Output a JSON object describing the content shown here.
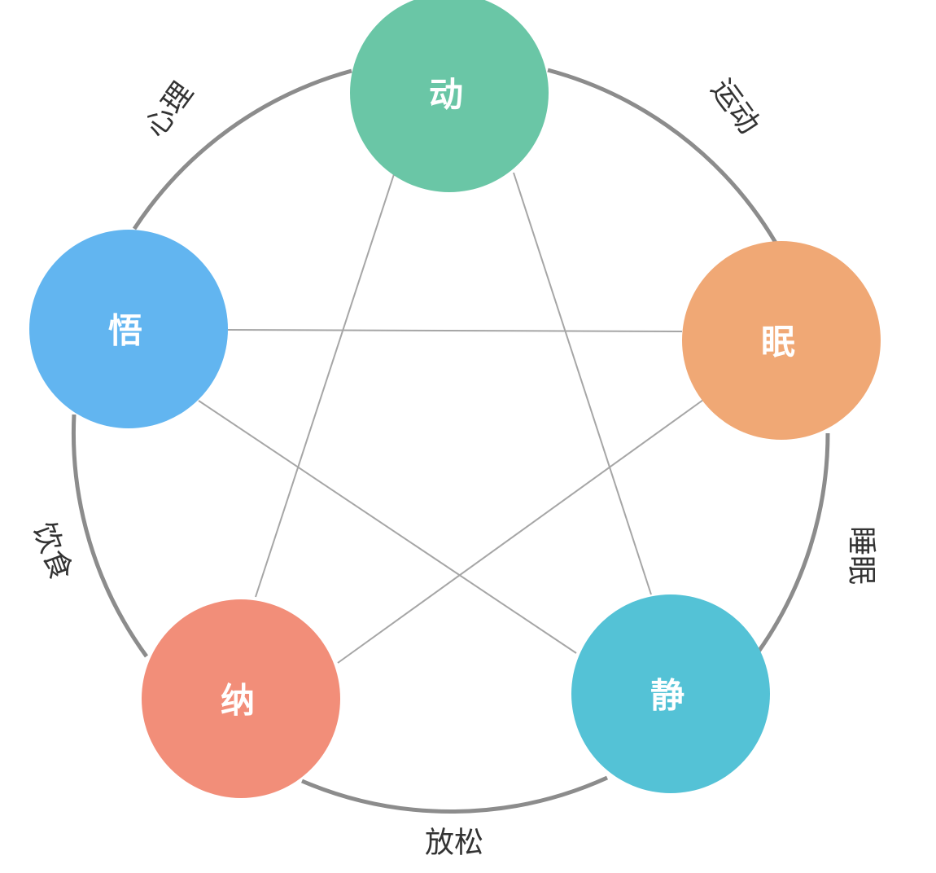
{
  "nodes": [
    {
      "id": "dong",
      "label": "动",
      "color": "#6AC6A6"
    },
    {
      "id": "mian",
      "label": "眠",
      "color": "#F0A875"
    },
    {
      "id": "jing",
      "label": "静",
      "color": "#54C2D6"
    },
    {
      "id": "na",
      "label": "纳",
      "color": "#F28E79"
    },
    {
      "id": "wu",
      "label": "悟",
      "color": "#62B5F0"
    }
  ],
  "arcs": [
    {
      "from": "dong",
      "to": "mian",
      "label": "运动"
    },
    {
      "from": "mian",
      "to": "jing",
      "label": "睡眠"
    },
    {
      "from": "jing",
      "to": "na",
      "label": "放松"
    },
    {
      "from": "na",
      "to": "wu",
      "label": "饮食"
    },
    {
      "from": "wu",
      "to": "dong",
      "label": "心理"
    }
  ],
  "star_links": [
    {
      "from": "dong",
      "to": "jing"
    },
    {
      "from": "dong",
      "to": "na"
    },
    {
      "from": "wu",
      "to": "mian"
    },
    {
      "from": "wu",
      "to": "jing"
    },
    {
      "from": "mian",
      "to": "na"
    }
  ],
  "colors": {
    "ring": "#8C8C8C",
    "star_line": "#A6A6A6",
    "node_text": "#FFFFFF",
    "arc_text": "#333333"
  }
}
